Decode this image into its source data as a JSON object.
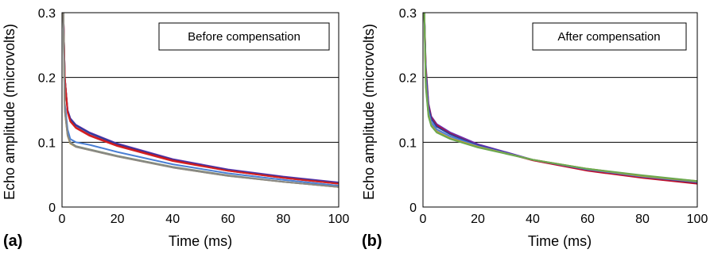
{
  "chart_data": [
    {
      "type": "line",
      "panel_label": "(a)",
      "legend_title": "Before compensation",
      "xlabel": "Time (ms)",
      "ylabel": "Echo amplitude (microvolts)",
      "xlim": [
        0,
        100
      ],
      "ylim": [
        0,
        0.3
      ],
      "xticks": [
        "0",
        "20",
        "40",
        "60",
        "80",
        "100"
      ],
      "yticks": [
        "0",
        "0.1",
        "0.2",
        "0.3"
      ],
      "grid": "horizontal",
      "legend_position": "top-right",
      "x": [
        0.5,
        1,
        2,
        3,
        5,
        10,
        20,
        40,
        60,
        80,
        100
      ],
      "series": [
        {
          "color": "#6a2fb0",
          "values": [
            0.3,
            0.2,
            0.15,
            0.137,
            0.127,
            0.115,
            0.098,
            0.074,
            0.058,
            0.047,
            0.038
          ]
        },
        {
          "color": "#2c3e9a",
          "values": [
            0.3,
            0.2,
            0.149,
            0.136,
            0.126,
            0.114,
            0.097,
            0.073,
            0.057,
            0.046,
            0.037
          ]
        },
        {
          "color": "#c0102a",
          "values": [
            0.3,
            0.2,
            0.147,
            0.133,
            0.123,
            0.111,
            0.095,
            0.072,
            0.056,
            0.045,
            0.036
          ]
        },
        {
          "color": "#d42020",
          "values": [
            0.3,
            0.2,
            0.146,
            0.132,
            0.122,
            0.11,
            0.094,
            0.071,
            0.056,
            0.045,
            0.036
          ]
        },
        {
          "color": "#4a7fd4",
          "values": [
            0.3,
            0.16,
            0.12,
            0.105,
            0.1,
            0.096,
            0.085,
            0.066,
            0.052,
            0.042,
            0.033
          ]
        },
        {
          "color": "#7a8a7a",
          "values": [
            0.3,
            0.15,
            0.112,
            0.1,
            0.094,
            0.089,
            0.079,
            0.062,
            0.049,
            0.039,
            0.031
          ]
        },
        {
          "color": "#c9a227",
          "values": [
            0.3,
            0.148,
            0.11,
            0.098,
            0.093,
            0.088,
            0.078,
            0.061,
            0.048,
            0.039,
            0.031
          ]
        },
        {
          "color": "#888888",
          "values": [
            0.3,
            0.149,
            0.111,
            0.099,
            0.093,
            0.088,
            0.078,
            0.061,
            0.048,
            0.039,
            0.031
          ]
        }
      ]
    },
    {
      "type": "line",
      "panel_label": "(b)",
      "legend_title": "After compensation",
      "xlabel": "Time (ms)",
      "ylabel": "Echo amplitude (microvolts)",
      "xlim": [
        0,
        100
      ],
      "ylim": [
        0,
        0.3
      ],
      "xticks": [
        "0",
        "20",
        "40",
        "60",
        "80",
        "100"
      ],
      "yticks": [
        "0",
        "0.1",
        "0.2",
        "0.3"
      ],
      "grid": "horizontal",
      "legend_position": "top-right",
      "x": [
        0.5,
        1,
        2,
        3,
        5,
        10,
        20,
        40,
        60,
        80,
        100
      ],
      "series": [
        {
          "color": "#6a2fb0",
          "values": [
            0.3,
            0.22,
            0.16,
            0.14,
            0.128,
            0.115,
            0.097,
            0.073,
            0.057,
            0.046,
            0.037
          ]
        },
        {
          "color": "#c0102a",
          "values": [
            0.3,
            0.215,
            0.157,
            0.138,
            0.126,
            0.113,
            0.095,
            0.072,
            0.056,
            0.045,
            0.036
          ]
        },
        {
          "color": "#2c3e9a",
          "values": [
            0.3,
            0.21,
            0.154,
            0.136,
            0.124,
            0.112,
            0.095,
            0.073,
            0.058,
            0.047,
            0.038
          ]
        },
        {
          "color": "#4a7fd4",
          "values": [
            0.3,
            0.2,
            0.148,
            0.131,
            0.12,
            0.109,
            0.094,
            0.073,
            0.058,
            0.047,
            0.039
          ]
        },
        {
          "color": "#888888",
          "values": [
            0.3,
            0.19,
            0.143,
            0.127,
            0.117,
            0.106,
            0.093,
            0.073,
            0.059,
            0.048,
            0.039
          ]
        },
        {
          "color": "#c9a227",
          "values": [
            0.3,
            0.19,
            0.142,
            0.126,
            0.116,
            0.106,
            0.093,
            0.073,
            0.059,
            0.048,
            0.04
          ]
        },
        {
          "color": "#6aa84f",
          "values": [
            0.3,
            0.185,
            0.14,
            0.125,
            0.115,
            0.105,
            0.092,
            0.073,
            0.059,
            0.049,
            0.04
          ]
        }
      ]
    }
  ]
}
